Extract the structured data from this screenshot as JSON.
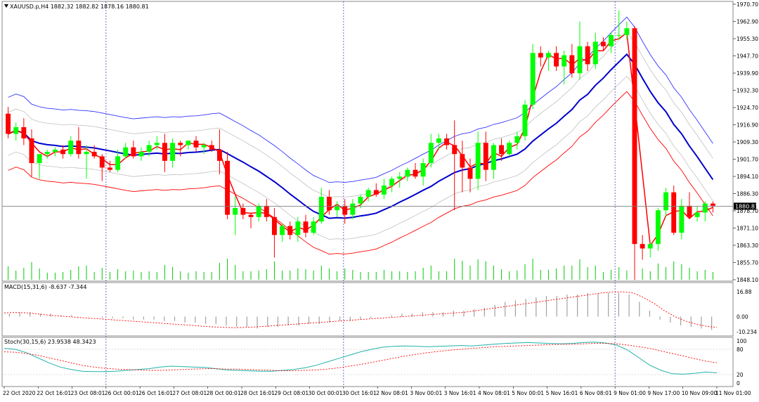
{
  "header": {
    "symbol_line": "XAUUSD.p,H4  1882.32 1882.82 1878.16 1880.81",
    "macd_label": "MACD(15,31,6) -8.637 -7.344",
    "stoch_label": "Stoch(30,15,6) 23.9538 48.3423",
    "current_price_label": "1880.81"
  },
  "colors": {
    "bull": "#00ff00",
    "bear": "#ff0000",
    "ma_center": "#0000cc",
    "envelope_upper": "#3333ff",
    "envelope_lower": "#ff0000",
    "envelope_mid": "#c0c0c0",
    "fast_ma": "#ff0000",
    "separator": "#888888",
    "volume": "#00cc00",
    "macd_histogram": "#a0a0a0",
    "macd_signal": "#ff0000",
    "stoch_main": "#20b2aa",
    "stoch_signal": "#ff0000"
  },
  "chart_data": [
    {
      "type": "candlestick",
      "title": "XAUUSD.p,H4",
      "price_axis_ticks": [
        "1970.70",
        "1962.90",
        "1955.30",
        "1947.70",
        "1939.90",
        "1932.30",
        "1924.70",
        "1916.90",
        "1909.30",
        "1901.70",
        "1894.10",
        "1886.30",
        "1878.70",
        "1871.10",
        "1863.30",
        "1855.70",
        "1848.10"
      ],
      "ylim": [
        1848.1,
        1970.7
      ],
      "current_price": 1880.81,
      "time_axis_labels": [
        "22 Oct 2020",
        "22 Oct 16:01",
        "23 Oct 08:01",
        "26 Oct 00:01",
        "26 Oct 16:01",
        "27 Oct 08:01",
        "28 Oct 00:01",
        "28 Oct 16:01",
        "29 Oct 08:01",
        "30 Oct 00:01",
        "30 Oct 16:01",
        "2 Nov 08:01",
        "3 Nov 00:01",
        "3 Nov 16:01",
        "4 Nov 08:01",
        "5 Nov 00:01",
        "5 Nov 16:01",
        "6 Nov 08:01",
        "9 Nov 01:00",
        "9 Nov 17:00",
        "10 Nov 09:00",
        "11 Nov 01:00"
      ],
      "candles": [
        [
          1922,
          1925,
          1911,
          1913
        ],
        [
          1913,
          1918,
          1910,
          1916
        ],
        [
          1916,
          1920,
          1908,
          1911
        ],
        [
          1911,
          1915,
          1894,
          1900
        ],
        [
          1900,
          1904,
          1893,
          1904
        ],
        [
          1904,
          1906,
          1902,
          1905
        ],
        [
          1905,
          1907,
          1903,
          1906
        ],
        [
          1906,
          1908,
          1902,
          1904
        ],
        [
          1904,
          1912,
          1903,
          1910
        ],
        [
          1910,
          1916,
          1902,
          1904
        ],
        [
          1904,
          1908,
          1893,
          1905
        ],
        [
          1905,
          1908,
          1902,
          1903
        ],
        [
          1903,
          1904,
          1892,
          1898
        ],
        [
          1898,
          1901,
          1896,
          1897
        ],
        [
          1897,
          1906,
          1896,
          1903
        ],
        [
          1903,
          1909,
          1902,
          1907
        ],
        [
          1907,
          1910,
          1902,
          1903
        ],
        [
          1903,
          1907,
          1901,
          1905
        ],
        [
          1905,
          1910,
          1903,
          1908
        ],
        [
          1908,
          1912,
          1906,
          1909
        ],
        [
          1909,
          1913,
          1896,
          1901
        ],
        [
          1901,
          1911,
          1898,
          1909
        ],
        [
          1909,
          1910,
          1903,
          1908
        ],
        [
          1908,
          1910,
          1906,
          1910
        ],
        [
          1910,
          1912,
          1905,
          1907
        ],
        [
          1907,
          1909,
          1904,
          1908
        ],
        [
          1908,
          1910,
          1905,
          1906
        ],
        [
          1906,
          1915,
          1895,
          1901
        ],
        [
          1901,
          1905,
          1875,
          1877
        ],
        [
          1877,
          1885,
          1868,
          1880
        ],
        [
          1880,
          1882,
          1875,
          1877
        ],
        [
          1877,
          1878,
          1871,
          1876
        ],
        [
          1876,
          1882,
          1874,
          1881
        ],
        [
          1881,
          1884,
          1874,
          1876
        ],
        [
          1876,
          1880,
          1858,
          1868
        ],
        [
          1868,
          1873,
          1865,
          1872
        ],
        [
          1872,
          1874,
          1866,
          1868
        ],
        [
          1868,
          1876,
          1865,
          1874
        ],
        [
          1874,
          1877,
          1867,
          1869
        ],
        [
          1869,
          1876,
          1868,
          1874
        ],
        [
          1874,
          1889,
          1873,
          1885
        ],
        [
          1885,
          1888,
          1877,
          1879
        ],
        [
          1879,
          1883,
          1876,
          1881
        ],
        [
          1881,
          1884,
          1873,
          1877
        ],
        [
          1877,
          1884,
          1875,
          1882
        ],
        [
          1882,
          1886,
          1880,
          1885
        ],
        [
          1885,
          1889,
          1883,
          1888
        ],
        [
          1888,
          1891,
          1885,
          1886
        ],
        [
          1886,
          1893,
          1884,
          1890
        ],
        [
          1890,
          1894,
          1887,
          1893
        ],
        [
          1893,
          1896,
          1889,
          1894
        ],
        [
          1894,
          1898,
          1892,
          1897
        ],
        [
          1897,
          1900,
          1893,
          1894
        ],
        [
          1894,
          1902,
          1890,
          1900
        ],
        [
          1900,
          1913,
          1898,
          1909
        ],
        [
          1909,
          1913,
          1906,
          1911
        ],
        [
          1911,
          1913,
          1906,
          1908
        ],
        [
          1908,
          1919,
          1879,
          1904
        ],
        [
          1904,
          1910,
          1887,
          1898
        ],
        [
          1898,
          1902,
          1887,
          1893
        ],
        [
          1893,
          1914,
          1888,
          1909
        ],
        [
          1909,
          1914,
          1892,
          1897
        ],
        [
          1897,
          1909,
          1893,
          1908
        ],
        [
          1908,
          1911,
          1901,
          1904
        ],
        [
          1904,
          1910,
          1903,
          1909
        ],
        [
          1909,
          1914,
          1906,
          1912
        ],
        [
          1912,
          1928,
          1910,
          1926
        ],
        [
          1926,
          1953,
          1924,
          1949
        ],
        [
          1949,
          1952,
          1943,
          1947
        ],
        [
          1947,
          1950,
          1941,
          1949
        ],
        [
          1949,
          1952,
          1941,
          1943
        ],
        [
          1943,
          1950,
          1935,
          1948
        ],
        [
          1948,
          1953,
          1938,
          1940
        ],
        [
          1940,
          1963,
          1937,
          1952
        ],
        [
          1952,
          1954,
          1941,
          1944
        ],
        [
          1944,
          1958,
          1942,
          1954
        ],
        [
          1954,
          1956,
          1950,
          1952
        ],
        [
          1952,
          1958,
          1949,
          1957
        ],
        [
          1957,
          1968,
          1955,
          1957
        ],
        [
          1957,
          1963,
          1955,
          1960
        ],
        [
          1960,
          1961,
          1848,
          1864
        ],
        [
          1864,
          1868,
          1857,
          1862
        ],
        [
          1862,
          1865,
          1858,
          1864
        ],
        [
          1864,
          1880,
          1861,
          1879
        ],
        [
          1879,
          1889,
          1876,
          1887
        ],
        [
          1887,
          1890,
          1868,
          1869
        ],
        [
          1869,
          1884,
          1866,
          1881
        ],
        [
          1881,
          1887,
          1875,
          1876
        ],
        [
          1876,
          1881,
          1874,
          1878
        ],
        [
          1878,
          1883,
          1874,
          1882
        ],
        [
          1882,
          1883,
          1878,
          1881
        ]
      ],
      "vertical_markers": [
        "26 Oct 00:01",
        "30 Oct 16:01",
        "9 Nov 01:00"
      ]
    },
    {
      "type": "line",
      "title": "MACD(15,31,6)",
      "value": -8.637,
      "signal": -7.344,
      "axis_ticks": [
        "16.88",
        "0.00",
        "-10.234"
      ],
      "ylim": [
        -10.234,
        16.88
      ],
      "signal_values": [
        2.5,
        2.8,
        2.6,
        2.0,
        1.2,
        0.5,
        0,
        -0.5,
        -1,
        -1.5,
        -2,
        -2.5,
        -3,
        -3.5,
        -4,
        -4.5,
        -5,
        -5.5,
        -6,
        -6.5,
        -7,
        -7.3,
        -7.5,
        -7.3,
        -7,
        -6.5,
        -6,
        -5.5,
        -5,
        -4.5,
        -4,
        -3.5,
        -3,
        -2.5,
        -2,
        -1.5,
        -1,
        -0.5,
        0,
        0.5,
        1,
        1.5,
        2,
        2.5,
        3,
        4,
        5,
        6,
        7,
        8,
        9,
        10,
        11,
        12,
        13,
        14,
        15,
        16,
        16.5,
        16.8,
        16,
        13,
        9,
        4,
        0,
        -3,
        -5,
        -6.5,
        -7.3
      ],
      "histogram": [
        2,
        3,
        3,
        2,
        2,
        1,
        1,
        0,
        0,
        -1,
        -1,
        -1,
        -2,
        -2,
        -2,
        -3,
        -3,
        -4,
        -4,
        -5,
        -5,
        -6,
        -7,
        -7,
        -8,
        -7,
        -7,
        -6,
        -6,
        -5,
        -5,
        -4,
        -3,
        -3,
        -2,
        -1,
        0,
        1,
        2,
        2,
        3,
        3,
        3,
        4,
        4,
        5,
        6,
        8,
        10,
        11,
        12,
        13,
        14,
        14,
        15,
        15,
        16,
        16,
        16,
        16,
        15,
        10,
        4,
        -2,
        -4,
        -6,
        -7,
        -8,
        -9
      ]
    },
    {
      "type": "line",
      "title": "Stoch(30,15,6)",
      "main": 23.9538,
      "signal": 48.3423,
      "axis_ticks": [
        "100",
        "80",
        "20",
        "0"
      ],
      "ylim": [
        0,
        100
      ],
      "main_values": [
        82,
        80,
        72,
        60,
        48,
        38,
        32,
        28,
        27,
        27,
        28,
        30,
        32,
        34,
        38,
        40,
        39,
        38,
        37,
        34,
        31,
        30,
        29,
        28,
        28,
        30,
        32,
        36,
        42,
        50,
        58,
        66,
        74,
        80,
        85,
        87,
        88,
        87,
        86,
        87,
        88,
        89,
        88,
        90,
        92,
        94,
        95,
        96,
        95,
        94,
        93,
        94,
        96,
        97,
        95,
        90,
        78,
        60,
        42,
        30,
        22,
        21,
        23,
        26,
        24
      ],
      "signal_values": [
        74,
        73,
        70,
        66,
        60,
        54,
        48,
        42,
        38,
        35,
        33,
        32,
        31,
        30,
        30,
        31,
        32,
        33,
        34,
        34,
        33,
        33,
        32,
        31,
        30,
        29,
        29,
        30,
        31,
        33,
        36,
        40,
        44,
        49,
        54,
        59,
        64,
        68,
        72,
        75,
        78,
        80,
        82,
        84,
        86,
        87,
        88,
        89,
        90,
        91,
        92,
        92,
        93,
        94,
        94,
        93,
        90,
        86,
        82,
        76,
        70,
        64,
        58,
        52,
        48
      ]
    }
  ]
}
